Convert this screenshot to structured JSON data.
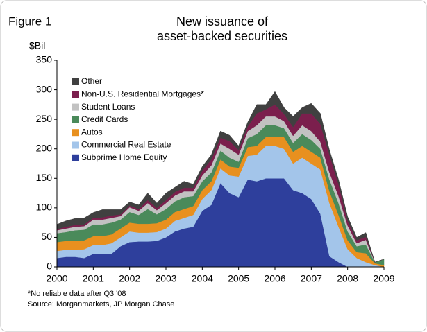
{
  "chart_data": {
    "type": "stacked_area",
    "figure_label": "Figure 1",
    "title": [
      "New issuance of",
      "asset-backed securities"
    ],
    "ylabel": "$Bil",
    "notes": [
      "*No reliable data after Q3 '08",
      "Source: Morganmarkets, JP Morgan Chase"
    ],
    "x": [
      2000,
      2000.25,
      2000.5,
      2000.75,
      2001,
      2001.25,
      2001.5,
      2001.75,
      2002,
      2002.25,
      2002.5,
      2002.75,
      2003,
      2003.25,
      2003.5,
      2003.75,
      2004,
      2004.25,
      2004.5,
      2004.75,
      2005,
      2005.25,
      2005.5,
      2005.75,
      2006,
      2006.25,
      2006.5,
      2006.75,
      2007,
      2007.25,
      2007.5,
      2007.75,
      2008,
      2008.25,
      2008.5,
      2008.75,
      2009
    ],
    "xlim": [
      2000,
      2009
    ],
    "xticks": [
      2000,
      2001,
      2002,
      2003,
      2004,
      2005,
      2006,
      2007,
      2008,
      2009
    ],
    "ylim": [
      0,
      350
    ],
    "yticks": [
      0,
      50,
      100,
      150,
      200,
      250,
      300,
      350
    ],
    "series": [
      {
        "name": "Subprime Home Equity",
        "color": "#2e3f9c",
        "values": [
          15,
          17,
          17,
          15,
          22,
          22,
          22,
          35,
          42,
          43,
          43,
          44,
          50,
          60,
          65,
          68,
          95,
          105,
          142,
          125,
          118,
          148,
          145,
          150,
          150,
          150,
          130,
          125,
          115,
          90,
          18,
          8,
          0,
          0,
          0,
          0,
          0
        ]
      },
      {
        "name": "Commercial Real Estate",
        "color": "#a3c5ea",
        "values": [
          12,
          12,
          12,
          15,
          15,
          15,
          18,
          15,
          18,
          15,
          15,
          15,
          15,
          18,
          18,
          20,
          20,
          25,
          25,
          30,
          35,
          40,
          45,
          55,
          55,
          50,
          45,
          60,
          60,
          75,
          90,
          60,
          30,
          15,
          8,
          3,
          0
        ]
      },
      {
        "name": "Autos",
        "color": "#e8901f",
        "values": [
          15,
          15,
          15,
          15,
          15,
          15,
          15,
          15,
          15,
          15,
          15,
          15,
          15,
          15,
          15,
          15,
          15,
          15,
          15,
          15,
          15,
          15,
          15,
          15,
          15,
          20,
          20,
          20,
          20,
          20,
          20,
          20,
          15,
          10,
          15,
          3,
          3
        ]
      },
      {
        "name": "Credit Cards",
        "color": "#4a8a5a",
        "values": [
          15,
          15,
          18,
          18,
          20,
          20,
          20,
          15,
          18,
          15,
          25,
          15,
          18,
          18,
          20,
          17,
          15,
          15,
          15,
          15,
          10,
          15,
          20,
          20,
          20,
          15,
          15,
          20,
          20,
          15,
          20,
          20,
          15,
          10,
          15,
          2,
          10
        ]
      },
      {
        "name": "Student Loans",
        "color": "#c2c2c2",
        "values": [
          5,
          6,
          6,
          6,
          8,
          8,
          8,
          6,
          8,
          7,
          10,
          7,
          10,
          10,
          10,
          8,
          10,
          12,
          12,
          15,
          12,
          12,
          15,
          15,
          15,
          12,
          12,
          15,
          15,
          12,
          12,
          12,
          10,
          5,
          8,
          0,
          0
        ]
      },
      {
        "name": "Non-U.S. Residential Mortgages*",
        "color": "#7b1f4d",
        "values": [
          2,
          3,
          3,
          3,
          3,
          4,
          4,
          3,
          3,
          3,
          5,
          4,
          5,
          6,
          6,
          6,
          8,
          10,
          10,
          13,
          8,
          8,
          20,
          12,
          20,
          12,
          15,
          20,
          30,
          30,
          30,
          20,
          8,
          5,
          5,
          0,
          0
        ]
      },
      {
        "name": "Other",
        "color": "#404040",
        "values": [
          8,
          10,
          11,
          11,
          9,
          13,
          10,
          8,
          6,
          7,
          12,
          8,
          12,
          8,
          11,
          6,
          7,
          8,
          11,
          10,
          7,
          7,
          15,
          8,
          22,
          11,
          18,
          10,
          17,
          18,
          8,
          8,
          7,
          5,
          7,
          0,
          0
        ]
      }
    ]
  }
}
